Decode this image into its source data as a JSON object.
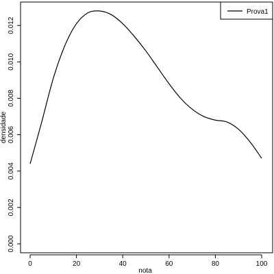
{
  "chart_data": {
    "type": "line",
    "title": "",
    "xlabel": "nota",
    "ylabel": "densidade",
    "xlim": [
      0,
      100
    ],
    "ylim": [
      0,
      0.0128
    ],
    "x_ticks": [
      0,
      20,
      40,
      60,
      80,
      100
    ],
    "x_tick_labels": [
      "0",
      "20",
      "40",
      "60",
      "80",
      "100"
    ],
    "y_ticks": [
      0.0,
      0.002,
      0.004,
      0.006,
      0.008,
      0.01,
      0.012
    ],
    "y_tick_labels": [
      "0.000",
      "0.002",
      "0.004",
      "0.006",
      "0.008",
      "0.010",
      "0.012"
    ],
    "grid": false,
    "legend": {
      "position": "top-right",
      "entries": [
        "Prova1"
      ]
    },
    "series": [
      {
        "name": "Prova1",
        "color": "#000000",
        "x": [
          0,
          5,
          10,
          15,
          20,
          25,
          30,
          35,
          40,
          45,
          50,
          55,
          60,
          65,
          70,
          75,
          80,
          85,
          90,
          95,
          100
        ],
        "y": [
          0.0044,
          0.0067,
          0.0091,
          0.0109,
          0.0121,
          0.0127,
          0.0128,
          0.0126,
          0.0121,
          0.0114,
          0.0106,
          0.0097,
          0.0088,
          0.008,
          0.0074,
          0.007,
          0.0068,
          0.0067,
          0.0063,
          0.0056,
          0.0047
        ]
      }
    ]
  }
}
